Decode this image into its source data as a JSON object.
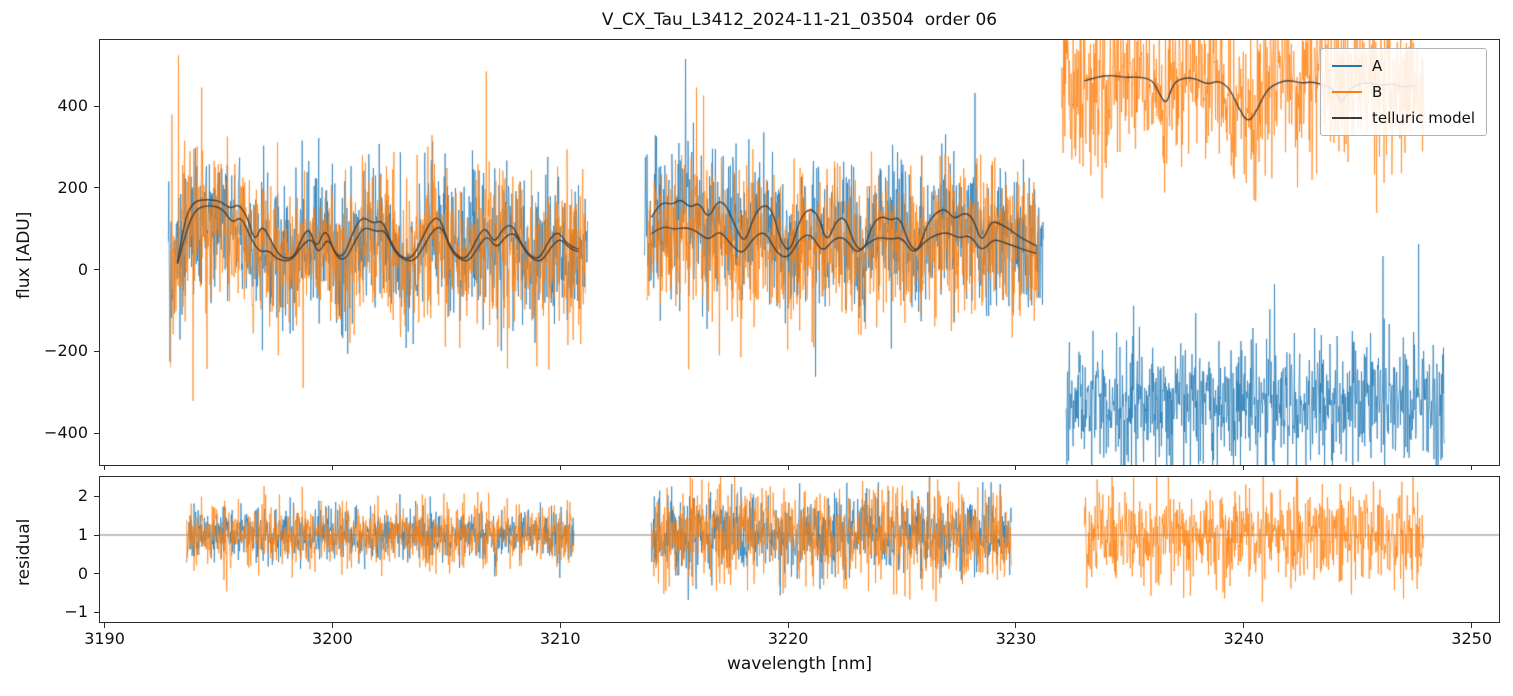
{
  "chart_data": {
    "type": "line",
    "title": "V_CX_Tau_L3412_2024-11-21_03504  order 06",
    "xlabel": "wavelength [nm]",
    "xlim": [
      3189.8,
      3251.2
    ],
    "xticks": [
      {
        "v": 3190,
        "label": "3190"
      },
      {
        "v": 3200,
        "label": "3200"
      },
      {
        "v": 3210,
        "label": "3210"
      },
      {
        "v": 3220,
        "label": "3220"
      },
      {
        "v": 3230,
        "label": "3230"
      },
      {
        "v": 3240,
        "label": "3240"
      },
      {
        "v": 3250,
        "label": "3250"
      }
    ],
    "legend": [
      {
        "label": "A",
        "color": "#1f77b4"
      },
      {
        "label": "B",
        "color": "#ff7f0e"
      },
      {
        "label": "telluric model",
        "color": "#3a3a3a"
      }
    ],
    "panels": [
      {
        "name": "flux",
        "ylabel": "flux [ADU]",
        "ylim": [
          -478,
          562
        ],
        "yticks": [
          {
            "v": 400,
            "label": "400"
          },
          {
            "v": 200,
            "label": "200"
          },
          {
            "v": 0,
            "label": "0"
          },
          {
            "v": -200,
            "label": "−200"
          },
          {
            "v": -400,
            "label": "−400"
          }
        ]
      },
      {
        "name": "residual",
        "ylabel": "residual",
        "ylim": [
          -1.25,
          2.5
        ],
        "hline": 1,
        "yticks": [
          {
            "v": 2,
            "label": "2"
          },
          {
            "v": 1,
            "label": "1"
          },
          {
            "v": 0,
            "label": "0"
          },
          {
            "v": -1,
            "label": "−1"
          }
        ]
      }
    ],
    "telluric_curves": {
      "t1a": [
        [
          3193.2,
          18
        ],
        [
          3193.5,
          120
        ],
        [
          3193.9,
          168
        ],
        [
          3194.5,
          172
        ],
        [
          3195.1,
          168
        ],
        [
          3195.5,
          148
        ],
        [
          3195.9,
          162
        ],
        [
          3196.3,
          125
        ],
        [
          3196.6,
          66
        ],
        [
          3196.9,
          112
        ],
        [
          3197.3,
          72
        ],
        [
          3197.7,
          30
        ],
        [
          3198.3,
          26
        ],
        [
          3198.7,
          84
        ],
        [
          3199.0,
          102
        ],
        [
          3199.3,
          48
        ],
        [
          3199.7,
          106
        ],
        [
          3200.1,
          38
        ],
        [
          3200.5,
          30
        ],
        [
          3200.9,
          92
        ],
        [
          3201.3,
          132
        ],
        [
          3201.8,
          112
        ],
        [
          3202.2,
          122
        ],
        [
          3202.6,
          62
        ],
        [
          3203.0,
          30
        ],
        [
          3203.5,
          26
        ],
        [
          3203.9,
          72
        ],
        [
          3204.3,
          118
        ],
        [
          3204.7,
          132
        ],
        [
          3205.1,
          62
        ],
        [
          3205.5,
          32
        ],
        [
          3205.9,
          26
        ],
        [
          3206.3,
          72
        ],
        [
          3206.7,
          108
        ],
        [
          3207.1,
          62
        ],
        [
          3207.5,
          102
        ],
        [
          3207.9,
          112
        ],
        [
          3208.3,
          62
        ],
        [
          3208.7,
          32
        ],
        [
          3209.1,
          26
        ],
        [
          3209.5,
          72
        ],
        [
          3209.9,
          96
        ],
        [
          3210.3,
          62
        ],
        [
          3210.8,
          50
        ]
      ],
      "t1b": [
        [
          3193.2,
          14
        ],
        [
          3193.6,
          98
        ],
        [
          3194.0,
          150
        ],
        [
          3194.6,
          158
        ],
        [
          3195.2,
          150
        ],
        [
          3195.6,
          112
        ],
        [
          3196.0,
          132
        ],
        [
          3196.4,
          78
        ],
        [
          3196.8,
          42
        ],
        [
          3197.2,
          48
        ],
        [
          3197.6,
          24
        ],
        [
          3198.2,
          20
        ],
        [
          3198.7,
          62
        ],
        [
          3199.1,
          78
        ],
        [
          3199.4,
          36
        ],
        [
          3199.8,
          82
        ],
        [
          3200.2,
          28
        ],
        [
          3200.6,
          24
        ],
        [
          3201.0,
          72
        ],
        [
          3201.4,
          106
        ],
        [
          3201.9,
          92
        ],
        [
          3202.3,
          98
        ],
        [
          3202.7,
          46
        ],
        [
          3203.1,
          24
        ],
        [
          3203.6,
          20
        ],
        [
          3204.0,
          56
        ],
        [
          3204.4,
          96
        ],
        [
          3204.8,
          108
        ],
        [
          3205.2,
          46
        ],
        [
          3205.6,
          24
        ],
        [
          3206.0,
          20
        ],
        [
          3206.4,
          56
        ],
        [
          3206.8,
          86
        ],
        [
          3207.2,
          50
        ],
        [
          3207.6,
          82
        ],
        [
          3208.0,
          92
        ],
        [
          3208.4,
          50
        ],
        [
          3208.8,
          24
        ],
        [
          3209.2,
          20
        ],
        [
          3209.6,
          56
        ],
        [
          3210.0,
          78
        ],
        [
          3210.4,
          52
        ],
        [
          3210.8,
          44
        ]
      ],
      "t2a": [
        [
          3214.0,
          128
        ],
        [
          3214.4,
          168
        ],
        [
          3214.9,
          158
        ],
        [
          3215.3,
          174
        ],
        [
          3215.7,
          150
        ],
        [
          3216.1,
          166
        ],
        [
          3216.5,
          122
        ],
        [
          3216.9,
          170
        ],
        [
          3217.3,
          158
        ],
        [
          3217.7,
          102
        ],
        [
          3218.1,
          62
        ],
        [
          3218.5,
          132
        ],
        [
          3218.9,
          160
        ],
        [
          3219.3,
          148
        ],
        [
          3219.7,
          64
        ],
        [
          3220.1,
          42
        ],
        [
          3220.5,
          122
        ],
        [
          3220.9,
          150
        ],
        [
          3221.3,
          138
        ],
        [
          3221.7,
          62
        ],
        [
          3222.1,
          120
        ],
        [
          3222.5,
          130
        ],
        [
          3222.9,
          62
        ],
        [
          3223.3,
          42
        ],
        [
          3223.7,
          112
        ],
        [
          3224.1,
          132
        ],
        [
          3224.5,
          120
        ],
        [
          3224.9,
          130
        ],
        [
          3225.3,
          62
        ],
        [
          3225.7,
          42
        ],
        [
          3226.1,
          112
        ],
        [
          3226.5,
          140
        ],
        [
          3226.9,
          150
        ],
        [
          3227.3,
          122
        ],
        [
          3227.7,
          140
        ],
        [
          3228.1,
          130
        ],
        [
          3228.5,
          62
        ],
        [
          3228.9,
          120
        ],
        [
          3229.3,
          112
        ],
        [
          3229.7,
          100
        ],
        [
          3230.1,
          82
        ],
        [
          3230.5,
          70
        ],
        [
          3230.9,
          58
        ]
      ],
      "t2b": [
        [
          3214.0,
          88
        ],
        [
          3214.5,
          108
        ],
        [
          3215.0,
          98
        ],
        [
          3215.5,
          104
        ],
        [
          3216.0,
          94
        ],
        [
          3216.5,
          70
        ],
        [
          3217.0,
          98
        ],
        [
          3217.5,
          60
        ],
        [
          3218.0,
          36
        ],
        [
          3218.5,
          80
        ],
        [
          3219.0,
          95
        ],
        [
          3219.5,
          40
        ],
        [
          3220.0,
          26
        ],
        [
          3220.5,
          76
        ],
        [
          3221.0,
          90
        ],
        [
          3221.5,
          40
        ],
        [
          3222.0,
          76
        ],
        [
          3222.5,
          80
        ],
        [
          3223.0,
          36
        ],
        [
          3223.5,
          66
        ],
        [
          3224.0,
          80
        ],
        [
          3224.5,
          74
        ],
        [
          3225.0,
          80
        ],
        [
          3225.5,
          36
        ],
        [
          3226.0,
          70
        ],
        [
          3226.5,
          86
        ],
        [
          3227.0,
          92
        ],
        [
          3227.5,
          76
        ],
        [
          3228.0,
          86
        ],
        [
          3228.5,
          42
        ],
        [
          3229.0,
          76
        ],
        [
          3229.5,
          66
        ],
        [
          3230.0,
          56
        ],
        [
          3230.5,
          46
        ],
        [
          3230.9,
          40
        ]
      ],
      "t3": [
        [
          3233.0,
          462
        ],
        [
          3233.6,
          472
        ],
        [
          3234.2,
          476
        ],
        [
          3234.8,
          470
        ],
        [
          3235.4,
          472
        ],
        [
          3236.0,
          464
        ],
        [
          3236.3,
          430
        ],
        [
          3236.6,
          402
        ],
        [
          3236.9,
          458
        ],
        [
          3237.4,
          470
        ],
        [
          3237.9,
          468
        ],
        [
          3238.4,
          452
        ],
        [
          3238.9,
          464
        ],
        [
          3239.4,
          442
        ],
        [
          3239.8,
          392
        ],
        [
          3240.2,
          358
        ],
        [
          3240.6,
          392
        ],
        [
          3241.0,
          440
        ],
        [
          3241.5,
          458
        ],
        [
          3242.0,
          464
        ],
        [
          3242.5,
          456
        ],
        [
          3243.0,
          460
        ],
        [
          3243.5,
          452
        ],
        [
          3244.0,
          440
        ],
        [
          3244.3,
          406
        ],
        [
          3244.6,
          440
        ],
        [
          3245.0,
          454
        ],
        [
          3245.5,
          458
        ],
        [
          3246.0,
          450
        ],
        [
          3246.5,
          456
        ],
        [
          3247.0,
          446
        ],
        [
          3247.5,
          450
        ]
      ]
    },
    "telluric_draw": [
      "t1a",
      "t1b",
      "t2a",
      "t2b",
      "t3"
    ],
    "flux_traces": [
      {
        "series": "A",
        "x0": 3192.8,
        "x1": 3211.2,
        "base": "t1a",
        "scale": 0.72,
        "sigma": 86,
        "seed": 11,
        "spike_p": 0.012,
        "spike_mult": 2.2
      },
      {
        "series": "A",
        "x0": 3213.7,
        "x1": 3231.2,
        "base": "t2a",
        "scale": 0.78,
        "sigma": 86,
        "seed": 12,
        "spike_p": 0.012,
        "spike_mult": 2.2
      },
      {
        "series": "A",
        "x0": 3232.2,
        "x1": 3248.8,
        "base": -325,
        "scale": 1,
        "sigma": 76,
        "seed": 13,
        "spike_p": 0.015,
        "spike_mult": 2.6
      },
      {
        "series": "B",
        "x0": 3192.9,
        "x1": 3211.1,
        "base": "t1b",
        "scale": 0.8,
        "sigma": 92,
        "seed": 14,
        "spike_p": 0.012,
        "spike_mult": 2.2
      },
      {
        "series": "B",
        "x0": 3213.8,
        "x1": 3231.0,
        "base": "t2b",
        "scale": 0.85,
        "sigma": 92,
        "seed": 15,
        "spike_p": 0.012,
        "spike_mult": 2.2
      },
      {
        "series": "B",
        "x0": 3232.0,
        "x1": 3247.9,
        "base": "t3",
        "scale": 1,
        "offset": -8,
        "sigma": 96,
        "seed": 16,
        "spike_p": 0.012,
        "spike_mult": 1.8
      }
    ],
    "residual_traces": [
      {
        "series": "A",
        "x0": 3193.6,
        "x1": 3210.6,
        "base": 1,
        "sigma": 0.34,
        "seed": 21
      },
      {
        "series": "A",
        "x0": 3214.0,
        "x1": 3229.8,
        "base": 1,
        "sigma": 0.52,
        "seed": 22
      },
      {
        "series": "B",
        "x0": 3193.6,
        "x1": 3210.6,
        "base": 1,
        "sigma": 0.4,
        "seed": 23
      },
      {
        "series": "B",
        "x0": 3214.0,
        "x1": 3229.8,
        "base": 1,
        "sigma": 0.62,
        "seed": 24
      },
      {
        "series": "B",
        "x0": 3233.0,
        "x1": 3247.9,
        "base": 1,
        "sigma": 0.62,
        "seed": 25
      }
    ],
    "noise_points_per_nm": 55
  }
}
